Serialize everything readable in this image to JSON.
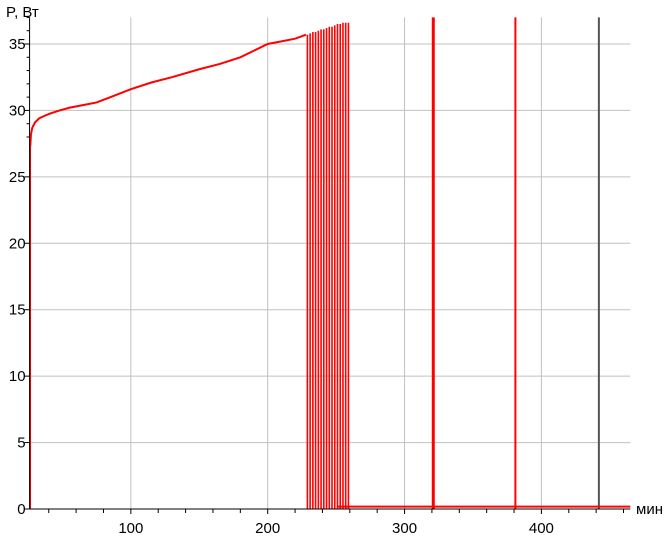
{
  "chart_data": {
    "type": "line",
    "ylabel": "P, Вт",
    "xlabel": "мин",
    "xlim": [
      26,
      465
    ],
    "ylim": [
      0,
      37
    ],
    "xticks": [
      100,
      200,
      300,
      400
    ],
    "yticks": [
      0,
      5,
      10,
      15,
      20,
      25,
      30,
      35
    ],
    "grid": true,
    "colors": {
      "series": "#ff0000",
      "grid": "#c0c0c0",
      "late_spike": "#555555"
    },
    "series": [
      {
        "x": [
          26.5,
          27,
          28,
          30,
          33,
          37,
          42,
          48,
          55,
          65,
          75,
          85,
          100,
          115,
          130,
          150,
          165,
          180,
          190,
          200,
          210,
          220,
          228
        ],
        "y": [
          27.3,
          28.2,
          28.7,
          29.1,
          29.4,
          29.6,
          29.8,
          30.0,
          30.2,
          30.4,
          30.6,
          31.0,
          31.6,
          32.1,
          32.5,
          33.1,
          33.5,
          34.0,
          34.5,
          35.0,
          35.2,
          35.4,
          35.7
        ]
      }
    ],
    "spikes": {
      "x": [
        229,
        231,
        233,
        235,
        237,
        239,
        241,
        243,
        245,
        247,
        249,
        251,
        253,
        255,
        257,
        259,
        321,
        381,
        442
      ],
      "y": [
        35.7,
        35.8,
        35.9,
        35.9,
        36.0,
        36.1,
        36.1,
        36.2,
        36.3,
        36.3,
        36.4,
        36.5,
        36.5,
        36.6,
        36.6,
        36.6,
        37,
        37,
        37
      ]
    },
    "tail": {
      "x": [
        251,
        465
      ],
      "y": 0.1
    }
  }
}
